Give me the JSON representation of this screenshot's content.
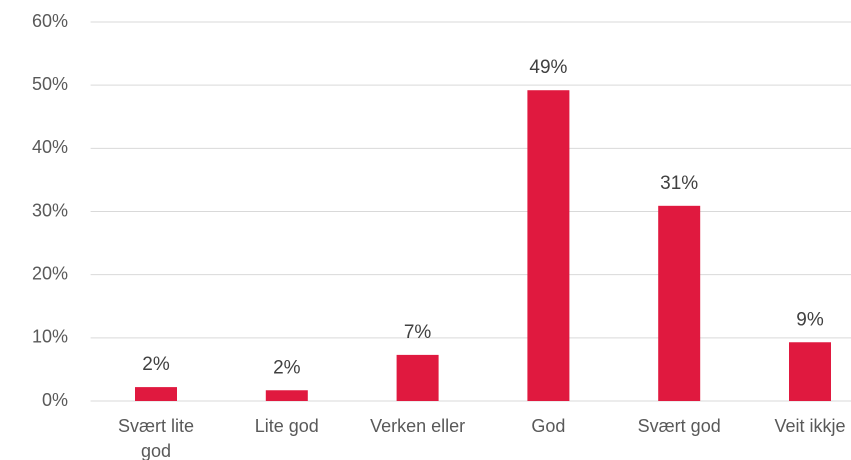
{
  "chart_data": {
    "type": "bar",
    "categories": [
      "Svært lite god",
      "Lite god",
      "Verken eller",
      "God",
      "Svært god",
      "Veit ikkje"
    ],
    "values": [
      2.2,
      1.7,
      7.3,
      49.2,
      30.9,
      9.3
    ],
    "value_labels": [
      "2%",
      "2%",
      "7%",
      "49%",
      "31%",
      "9%"
    ],
    "color": "#e0193f",
    "ylim": [
      0,
      60
    ],
    "yticks": [
      {
        "value": 0,
        "label": "0%"
      },
      {
        "value": 10,
        "label": "10%"
      },
      {
        "value": 20,
        "label": "20%"
      },
      {
        "value": 30,
        "label": "30%"
      },
      {
        "value": 40,
        "label": "40%"
      },
      {
        "value": 50,
        "label": "50%"
      },
      {
        "value": 60,
        "label": "60%"
      }
    ],
    "grid": true
  }
}
